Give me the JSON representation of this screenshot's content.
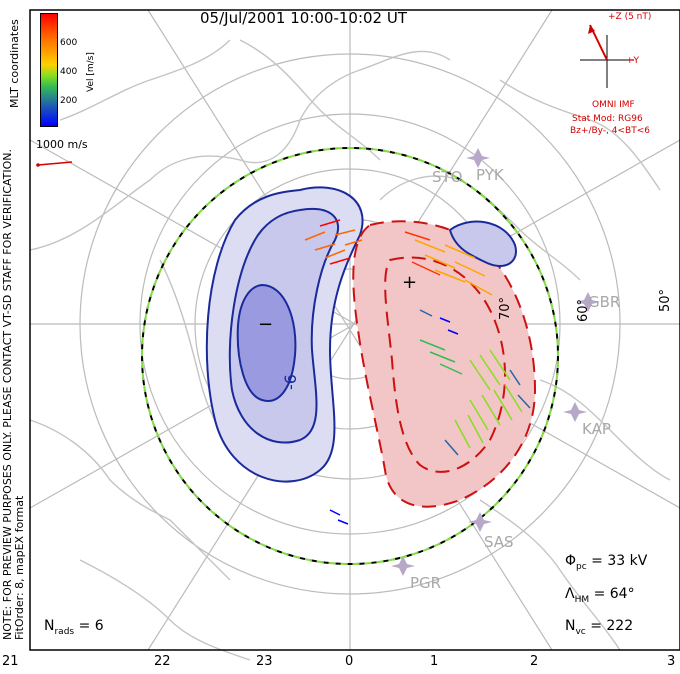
{
  "title": "05/Jul/2001 10:00-10:02 UT",
  "side_note": {
    "line1": "NOTE: FOR PREVIEW PURPOSES ONLY. PLEASE CONTACT VT-SD STAFF FOR VERIFICATION.",
    "line2": "FitOrder: 8, mapEX format"
  },
  "coordinates_label": "MLT coordinates",
  "colorbar": {
    "title": "Vel [m/s]",
    "ticks": [
      "600",
      "400",
      "200"
    ],
    "colors": [
      "#ff0000",
      "#ff6600",
      "#ffa500",
      "#ffd000",
      "#88dd22",
      "#33bb55",
      "#2266aa",
      "#0000ff"
    ]
  },
  "reference_vector": "1000 m/s",
  "imf": {
    "bz_label": "+Z (5 nT)",
    "by_label": "+Y",
    "source": "OMNI IMF",
    "stat_mod": "Stat Mod: RG96",
    "condition": "Bz+/By-, 4<BT<6"
  },
  "stats": {
    "phi_symbol": "Φ",
    "phi_sub": "pc",
    "phi_value": "= 33 kV",
    "lambda_symbol": "Λ",
    "lambda_sub": "HM",
    "lambda_value": "= 64°",
    "nvc_symbol": "N",
    "nvc_sub": "vc",
    "nvc_value": "= 222",
    "nrads_symbol": "N",
    "nrads_sub": "rads",
    "nrads_value": "= 6"
  },
  "mlt_ticks": [
    "21",
    "22",
    "23",
    "0",
    "1",
    "2",
    "3"
  ],
  "lat_labels": [
    "70°",
    "60°",
    "50°"
  ],
  "stations": [
    "STO",
    "PYK",
    "GBR",
    "KAP",
    "SAS",
    "PGR"
  ],
  "contour_labels": {
    "negative_cell": "−",
    "positive_cell": "+",
    "contour_value": "-6"
  },
  "colors": {
    "negative_fill": "#c8c8ec",
    "negative_inner": "#9a9ae0",
    "positive_fill": "#f2c6c6",
    "contour_blue": "#1a2a9a",
    "contour_red": "#cc1111",
    "grid": "#bbbbbb",
    "coast": "#c4c4c4",
    "boundary_green": "#80dd40",
    "imf_red": "#d40000"
  }
}
